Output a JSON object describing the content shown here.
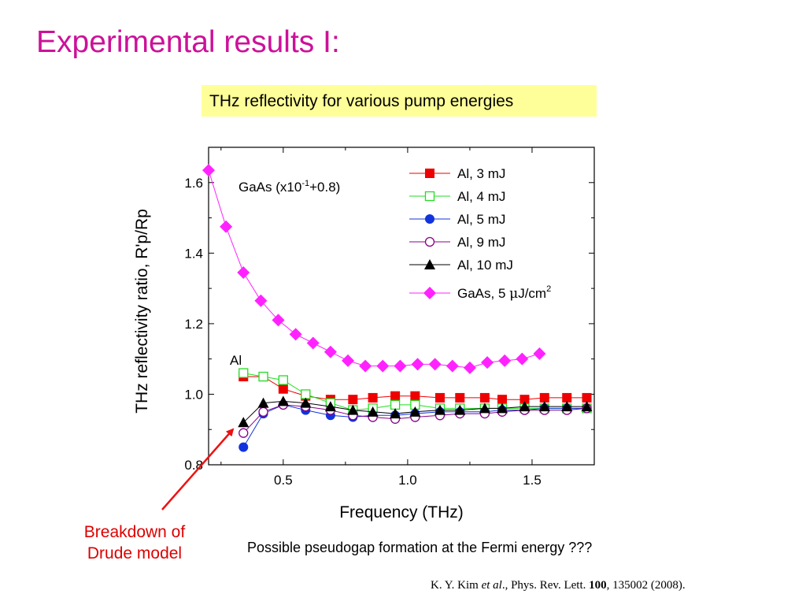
{
  "slide": {
    "title": "Experimental results I:",
    "subtitle": "THz reflectivity for various pump energies",
    "annotation_breakdown_line1": "Breakdown of",
    "annotation_breakdown_line2": "Drude model",
    "note": "Possible pseudogap formation at the Fermi energy ???",
    "citation": {
      "authors": "K. Y. Kim ",
      "etal": "et al",
      "journal": "., Phys. Rev. Lett. ",
      "volume": "100",
      "rest": ", 135002 (2008)."
    },
    "arrow_color": "#ee1111"
  },
  "chart_data": {
    "type": "scatter",
    "title": "",
    "xlabel": "Frequency (THz)",
    "ylabel": "THz reflectivity ratio, R'p/Rp",
    "xlim": [
      0.2,
      1.75
    ],
    "ylim": [
      0.8,
      1.7
    ],
    "xticks": [
      0.5,
      1.0,
      1.5
    ],
    "xtick_labels": [
      "0.5",
      "1.0",
      "1.5"
    ],
    "yticks": [
      0.8,
      1.0,
      1.2,
      1.4,
      1.6
    ],
    "ytick_labels": [
      "0.8",
      "1.0",
      "1.2",
      "1.4",
      "1.6"
    ],
    "grid": false,
    "legend_position": "top-right",
    "annotations": {
      "gaas": "GaAs (x10",
      "gaas_exp": "-1",
      "gaas_rest": "+0.8)",
      "al": "Al"
    },
    "series": [
      {
        "name": "Al, 3 mJ",
        "color": "#ee0000",
        "marker": "square-filled",
        "x": [
          0.34,
          0.42,
          0.5,
          0.59,
          0.69,
          0.78,
          0.86,
          0.95,
          1.03,
          1.13,
          1.21,
          1.31,
          1.38,
          1.47,
          1.55,
          1.64,
          1.72
        ],
        "y": [
          1.05,
          1.05,
          1.015,
          0.995,
          0.985,
          0.985,
          0.99,
          0.995,
          0.995,
          0.99,
          0.99,
          0.99,
          0.985,
          0.985,
          0.99,
          0.99,
          0.99
        ]
      },
      {
        "name": "Al, 4 mJ",
        "color": "#22dd22",
        "marker": "square-open",
        "x": [
          0.34,
          0.42,
          0.5,
          0.59,
          0.69,
          0.78,
          0.86,
          0.95,
          1.03,
          1.13,
          1.21,
          1.31,
          1.38,
          1.47,
          1.55,
          1.64,
          1.72
        ],
        "y": [
          1.06,
          1.05,
          1.04,
          1.0,
          0.975,
          0.955,
          0.96,
          0.97,
          0.97,
          0.96,
          0.96,
          0.96,
          0.96,
          0.96,
          0.96,
          0.96,
          0.96
        ]
      },
      {
        "name": "Al, 5 mJ",
        "color": "#1133dd",
        "marker": "circle-filled",
        "x": [
          0.34,
          0.42,
          0.5,
          0.59,
          0.69,
          0.78,
          0.86,
          0.95,
          1.03,
          1.13,
          1.21,
          1.31,
          1.38,
          1.47,
          1.55,
          1.64,
          1.72
        ],
        "y": [
          0.85,
          0.945,
          0.97,
          0.955,
          0.94,
          0.935,
          0.94,
          0.94,
          0.945,
          0.95,
          0.95,
          0.95,
          0.955,
          0.955,
          0.96,
          0.96,
          0.96
        ]
      },
      {
        "name": "Al, 9 mJ",
        "color": "#880088",
        "marker": "circle-open",
        "x": [
          0.34,
          0.42,
          0.5,
          0.59,
          0.69,
          0.78,
          0.86,
          0.95,
          1.03,
          1.13,
          1.21,
          1.31,
          1.38,
          1.47,
          1.55,
          1.64,
          1.72
        ],
        "y": [
          0.89,
          0.95,
          0.97,
          0.965,
          0.955,
          0.94,
          0.935,
          0.93,
          0.935,
          0.94,
          0.945,
          0.945,
          0.95,
          0.955,
          0.955,
          0.955,
          0.96
        ]
      },
      {
        "name": "Al, 10 mJ",
        "color": "#000000",
        "marker": "triangle-filled",
        "x": [
          0.34,
          0.42,
          0.5,
          0.59,
          0.69,
          0.78,
          0.86,
          0.95,
          1.03,
          1.13,
          1.21,
          1.31,
          1.38,
          1.47,
          1.55,
          1.64,
          1.72
        ],
        "y": [
          0.92,
          0.975,
          0.98,
          0.975,
          0.965,
          0.955,
          0.95,
          0.945,
          0.95,
          0.955,
          0.955,
          0.96,
          0.96,
          0.965,
          0.965,
          0.965,
          0.965
        ]
      },
      {
        "name": "GaAs, 5 μJ/cm²",
        "color": "#ff22ff",
        "marker": "diamond-filled",
        "x": [
          0.2,
          0.27,
          0.34,
          0.41,
          0.48,
          0.55,
          0.62,
          0.69,
          0.76,
          0.83,
          0.9,
          0.97,
          1.04,
          1.11,
          1.18,
          1.25,
          1.32,
          1.39,
          1.46,
          1.53
        ],
        "y": [
          1.635,
          1.475,
          1.345,
          1.265,
          1.21,
          1.17,
          1.145,
          1.12,
          1.095,
          1.08,
          1.08,
          1.08,
          1.085,
          1.085,
          1.08,
          1.075,
          1.09,
          1.095,
          1.1,
          1.115
        ]
      }
    ],
    "legend": {
      "s0": "Al, 3 mJ",
      "s1": "Al, 4 mJ",
      "s2": "Al, 5 mJ",
      "s3": "Al, 9 mJ",
      "s4": "Al, 10 mJ",
      "s5a": "GaAs, 5 ",
      "s5b": "μ",
      "s5c": "J/cm",
      "s5d": "2"
    }
  }
}
